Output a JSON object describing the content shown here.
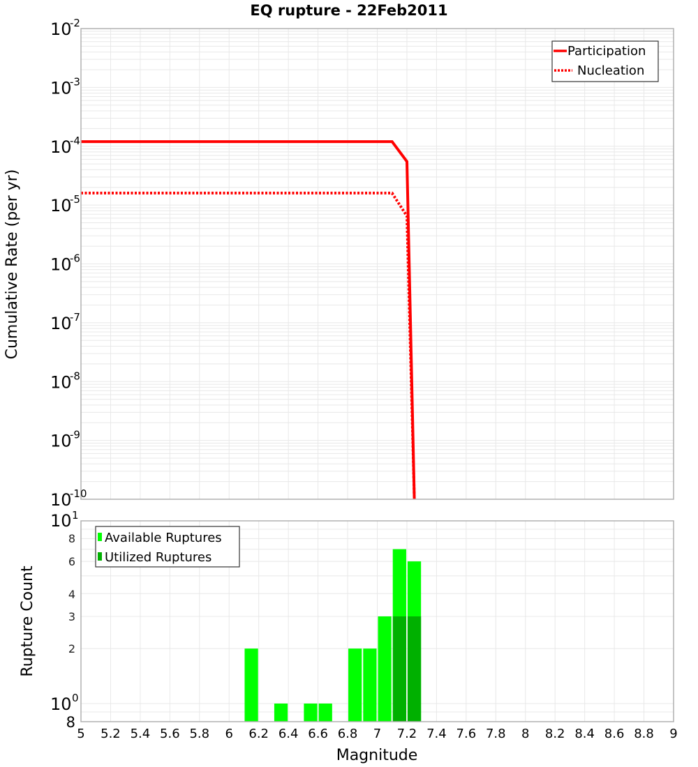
{
  "title": "EQ rupture - 22Feb2011",
  "chart_data": [
    {
      "type": "line",
      "title": "EQ rupture - 22Feb2011",
      "xlabel": "Magnitude",
      "ylabel": "Cumulative Rate (per yr)",
      "yscale": "log",
      "ylim": [
        1e-10,
        0.01
      ],
      "xlim": [
        5,
        9
      ],
      "grid": true,
      "legend_position": "upper right",
      "y_tick_labels": [
        "10^-2",
        "10^-3",
        "10^-4",
        "10^-5",
        "10^-6",
        "10^-7",
        "10^-8",
        "10^-9",
        "10^-10"
      ],
      "series": [
        {
          "name": "Participation",
          "style": "solid",
          "color": "#ff0000",
          "x": [
            5.0,
            7.1,
            7.2,
            7.25
          ],
          "y": [
            0.00012,
            0.00012,
            5.5e-05,
            1e-10
          ]
        },
        {
          "name": "Nucleation",
          "style": "dotted",
          "color": "#ff0000",
          "x": [
            5.0,
            7.1,
            7.2,
            7.25
          ],
          "y": [
            1.6e-05,
            1.6e-05,
            6.5e-06,
            1e-10
          ]
        }
      ]
    },
    {
      "type": "bar",
      "xlabel": "Magnitude",
      "ylabel": "Rupture Count",
      "yscale": "log",
      "ylim": [
        0.8,
        10
      ],
      "xlim": [
        5,
        9
      ],
      "grid": true,
      "legend_position": "upper left",
      "x_ticks": [
        "5",
        "5.2",
        "5.4",
        "5.6",
        "5.8",
        "6",
        "6.2",
        "6.4",
        "6.6",
        "6.8",
        "7",
        "7.2",
        "7.4",
        "7.6",
        "7.8",
        "8",
        "8.2",
        "8.4",
        "8.6",
        "8.8",
        "9"
      ],
      "y_tick_labels": [
        "10^1",
        "8",
        "6",
        "4",
        "3",
        "2",
        "10^0",
        "8"
      ],
      "bin_width": 0.1,
      "categories": [
        6.15,
        6.35,
        6.55,
        6.65,
        6.85,
        6.95,
        7.05,
        7.15,
        7.25
      ],
      "series": [
        {
          "name": "Available Ruptures",
          "color": "#00ff00",
          "values": [
            2,
            1,
            1,
            1,
            2,
            2,
            3,
            7,
            6
          ]
        },
        {
          "name": "Utilized Ruptures",
          "color": "#00b000",
          "values": [
            0,
            0,
            0,
            0,
            0,
            0,
            0,
            3,
            3
          ]
        }
      ]
    }
  ],
  "top_plot": {
    "ylabel": "Cumulative Rate (per yr)",
    "yticks": [
      {
        "base": "10",
        "exp": "-2"
      },
      {
        "base": "10",
        "exp": "-3"
      },
      {
        "base": "10",
        "exp": "-4"
      },
      {
        "base": "10",
        "exp": "-5"
      },
      {
        "base": "10",
        "exp": "-6"
      },
      {
        "base": "10",
        "exp": "-7"
      },
      {
        "base": "10",
        "exp": "-8"
      },
      {
        "base": "10",
        "exp": "-9"
      },
      {
        "base": "10",
        "exp": "-10"
      }
    ],
    "legend": [
      {
        "label": "Participation",
        "color": "#ff0000",
        "style": "solid"
      },
      {
        "label": "Nucleation",
        "color": "#ff0000",
        "style": "dotted"
      }
    ]
  },
  "bottom_plot": {
    "ylabel": "Rupture Count",
    "xlabel": "Magnitude",
    "major_ticks": [
      {
        "base": "10",
        "exp": "1"
      },
      {
        "base": "10",
        "exp": "0"
      }
    ],
    "minor_ticks": [
      "8",
      "6",
      "4",
      "3",
      "2"
    ],
    "bottom_tick": "8",
    "legend": [
      {
        "label": "Available Ruptures",
        "color": "#00ff00"
      },
      {
        "label": "Utilized Ruptures",
        "color": "#00b000"
      }
    ],
    "xticks": [
      "5",
      "5.2",
      "5.4",
      "5.6",
      "5.8",
      "6",
      "6.2",
      "6.4",
      "6.6",
      "6.8",
      "7",
      "7.2",
      "7.4",
      "7.6",
      "7.8",
      "8",
      "8.2",
      "8.4",
      "8.6",
      "8.8",
      "9"
    ]
  }
}
